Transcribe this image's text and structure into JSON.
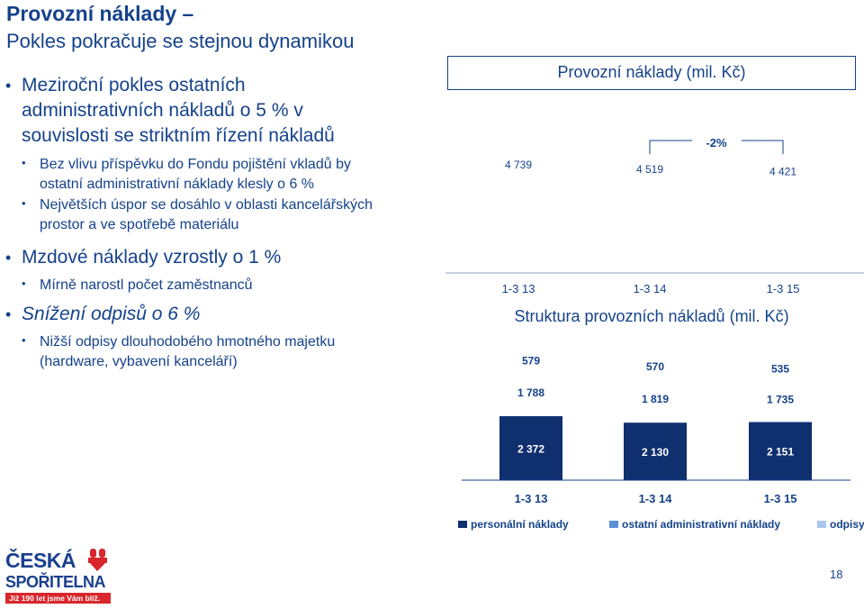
{
  "slide": {
    "title": "Provozní náklady –",
    "subtitle": "Pokles pokračuje se stejnou dynamikou",
    "page_number": "18"
  },
  "bullets": [
    {
      "level": 1,
      "text": "Meziroční pokles ostatních administrativních nákladů o 5 % v souvislosti se striktním řízení nákladů"
    },
    {
      "level": 2,
      "text": "Bez vlivu příspěvku do Fondu pojištění vkladů by ostatní administrativní náklady klesly o 6 %"
    },
    {
      "level": 2,
      "text": "Největších úspor se dosáhlo v oblasti kancelářských prostor a ve spotřebě materiálu"
    },
    {
      "level": 1,
      "text": "Mzdové náklady vzrostly o 1 %"
    },
    {
      "level": 2,
      "text": "Mírně narostl počet zaměstnanců"
    },
    {
      "level": 1,
      "text": "Snížení odpisů o 6 %",
      "italic": true
    },
    {
      "level": 2,
      "text": "Nižší odpisy dlouhodobého hmotného majetku (hardware, vybavení kanceláří)"
    }
  ],
  "logo": {
    "line1": "ČESKÁ",
    "line2": "SPOŘITELNA",
    "tagline": "Již 190 let jsme Vám blíž."
  },
  "chart_data": [
    {
      "type": "bar",
      "title": "Provozní náklady (mil. Kč)",
      "categories": [
        "1-3 13",
        "1-3 14",
        "1-3 15"
      ],
      "values": [
        4739,
        4519,
        4421
      ],
      "value_labels": [
        "4 739",
        "4 519",
        "4 421"
      ],
      "annotation": "-2%",
      "colors": {
        "bar": "#ffffff",
        "text": "#15428b"
      }
    },
    {
      "type": "bar",
      "stacked": true,
      "title": "Struktura provozních nákladů (mil. Kč)",
      "categories": [
        "1-3 13",
        "1-3 14",
        "1-3 15"
      ],
      "series": [
        {
          "name": "personální náklady",
          "values": [
            2372,
            2130,
            2151
          ],
          "labels": [
            "2 372",
            "2 130",
            "2 151"
          ],
          "color": "#0f2f6f"
        },
        {
          "name": "ostatní administrativní náklady",
          "values": [
            1788,
            1819,
            1735
          ],
          "labels": [
            "1 788",
            "1 819",
            "1 735"
          ],
          "color": "#ffffff"
        },
        {
          "name": "odpisy",
          "values": [
            579,
            570,
            535
          ],
          "labels": [
            "579",
            "570",
            "535"
          ],
          "color": "#ffffff"
        }
      ],
      "legend": [
        "personální náklady",
        "ostatní administrativní náklady",
        "odpisy"
      ],
      "legend_colors": [
        "#0f2f6f",
        "#5b8fd6",
        "#a9c7ee"
      ],
      "legend_position": "bottom"
    }
  ]
}
